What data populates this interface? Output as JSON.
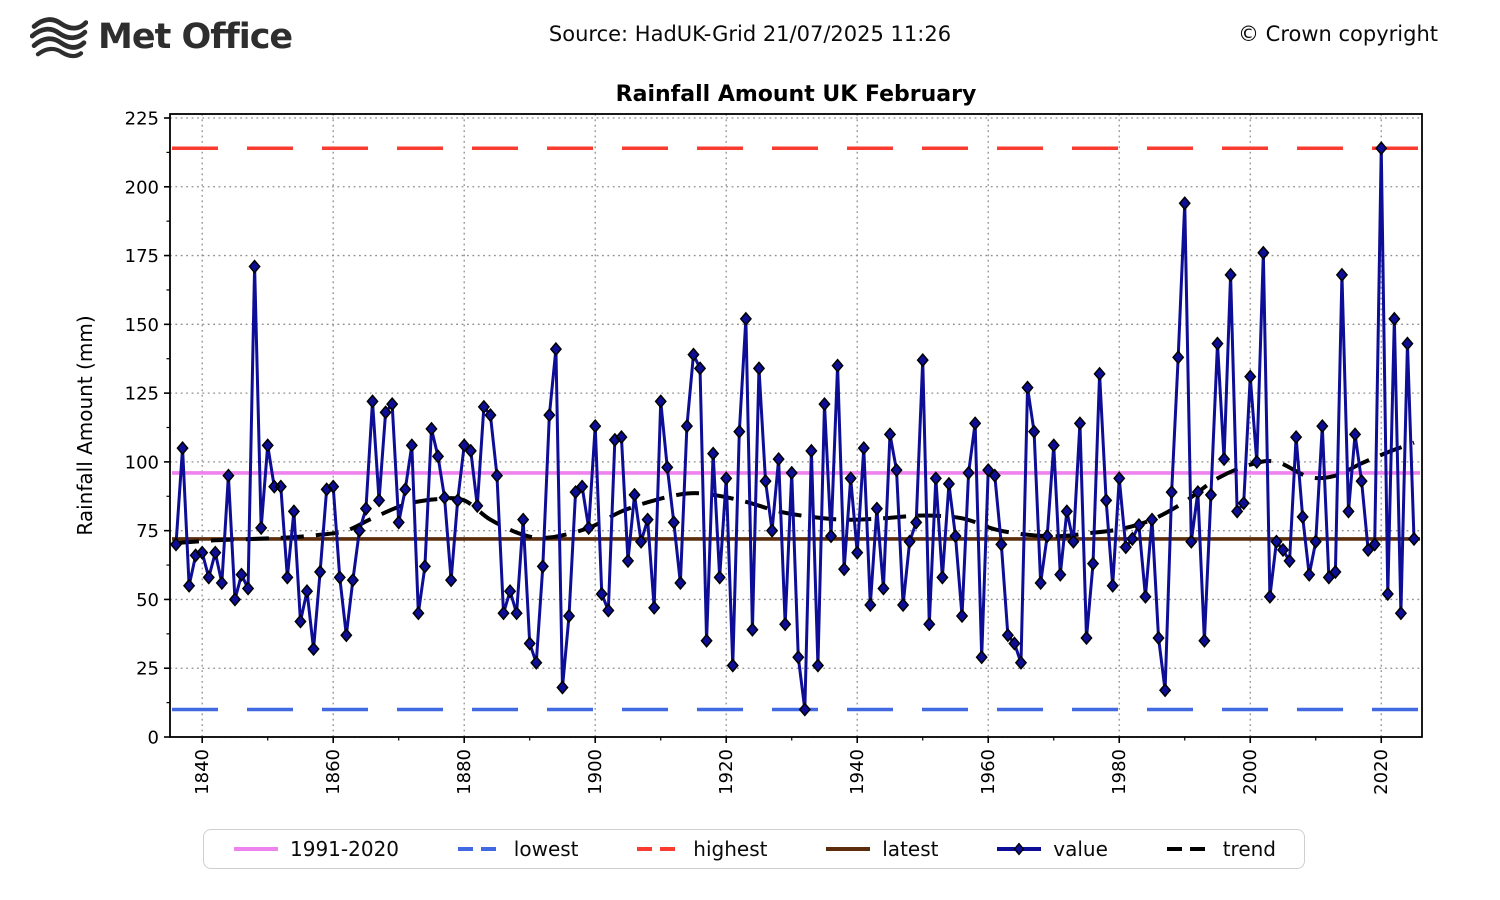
{
  "header": {
    "logo_text": "Met Office",
    "source": "Source: HadUK-Grid 21/07/2025 11:26",
    "copyright": "© Crown copyright"
  },
  "chart_data": {
    "type": "line",
    "title": "Rainfall Amount UK February",
    "xlabel": "",
    "ylabel": "Rainfall Amount (mm)",
    "ylim": [
      0,
      225
    ],
    "ytick_step": 25,
    "xticks": [
      1840,
      1860,
      1880,
      1900,
      1920,
      1940,
      1960,
      1980,
      2000,
      2020
    ],
    "grid": true,
    "legend_position": "bottom",
    "x_start": 1836,
    "x_end": 2025,
    "series_name": "value",
    "values": [
      70,
      105,
      55,
      66,
      67,
      58,
      67,
      56,
      95,
      50,
      59,
      54,
      171,
      76,
      106,
      91,
      91,
      58,
      82,
      42,
      53,
      32,
      60,
      90,
      91,
      58,
      37,
      57,
      75,
      83,
      122,
      86,
      118,
      121,
      78,
      90,
      106,
      45,
      62,
      112,
      102,
      87,
      57,
      86,
      106,
      104,
      84,
      120,
      117,
      95,
      45,
      53,
      45,
      79,
      34,
      27,
      62,
      117,
      141,
      18,
      44,
      89,
      91,
      76,
      113,
      52,
      46,
      108,
      109,
      64,
      88,
      71,
      79,
      47,
      122,
      98,
      78,
      56,
      113,
      139,
      134,
      35,
      103,
      58,
      94,
      26,
      111,
      152,
      39,
      134,
      93,
      75,
      101,
      41,
      96,
      29,
      10,
      104,
      26,
      121,
      73,
      135,
      61,
      94,
      67,
      105,
      48,
      83,
      54,
      110,
      97,
      48,
      71,
      78,
      137,
      41,
      94,
      58,
      92,
      73,
      44,
      96,
      114,
      29,
      97,
      95,
      70,
      37,
      34,
      27,
      127,
      111,
      56,
      73,
      106,
      59,
      82,
      71,
      114,
      36,
      63,
      132,
      86,
      55,
      94,
      69,
      72,
      77,
      51,
      79,
      36,
      17,
      89,
      138,
      194,
      71,
      89,
      35,
      88,
      143,
      101,
      168,
      82,
      85,
      131,
      100,
      176,
      51,
      71,
      68,
      64,
      109,
      80,
      59,
      71,
      113,
      58,
      60,
      168,
      82,
      110,
      93,
      68,
      70,
      214,
      52,
      152,
      45,
      143,
      72
    ],
    "reference_lines": [
      {
        "label": "1991-2020",
        "value": 96,
        "color": "#ee82ee",
        "style": "solid"
      },
      {
        "label": "lowest",
        "value": 10,
        "color": "#4169e1",
        "style": "dashed"
      },
      {
        "label": "highest",
        "value": 214,
        "color": "#f93b30",
        "style": "dashed"
      },
      {
        "label": "latest",
        "value": 72,
        "color": "#5b2d0d",
        "style": "solid"
      }
    ],
    "value_series": {
      "color": "#0d0d96",
      "marker": "diamond",
      "marker_edge_color": "#000000"
    },
    "trend": {
      "color": "#000000",
      "style": "dashed"
    },
    "trend_knots": [
      [
        1836,
        70.5
      ],
      [
        1842,
        71.5
      ],
      [
        1848,
        72
      ],
      [
        1853,
        72.5
      ],
      [
        1858,
        73.5
      ],
      [
        1862,
        75
      ],
      [
        1866,
        79.5
      ],
      [
        1871,
        84.5
      ],
      [
        1876,
        86.5
      ],
      [
        1880,
        86
      ],
      [
        1884,
        79
      ],
      [
        1889,
        73.5
      ],
      [
        1893,
        72.5
      ],
      [
        1899,
        76
      ],
      [
        1904,
        82
      ],
      [
        1909,
        86
      ],
      [
        1914,
        88.5
      ],
      [
        1918,
        88
      ],
      [
        1923,
        85.5
      ],
      [
        1928,
        82
      ],
      [
        1933,
        80
      ],
      [
        1938,
        79
      ],
      [
        1944,
        79.5
      ],
      [
        1950,
        80.5
      ],
      [
        1956,
        79.5
      ],
      [
        1961,
        75.5
      ],
      [
        1966,
        73.5
      ],
      [
        1971,
        73
      ],
      [
        1975,
        74
      ],
      [
        1980,
        75.5
      ],
      [
        1985,
        79
      ],
      [
        1990,
        85.5
      ],
      [
        1995,
        94
      ],
      [
        2000,
        99
      ],
      [
        2004,
        100
      ],
      [
        2009,
        94.5
      ],
      [
        2013,
        95
      ],
      [
        2017,
        99.5
      ],
      [
        2021,
        103.5
      ],
      [
        2025,
        107
      ]
    ],
    "legend": [
      {
        "label": "1991-2020",
        "color": "#ee82ee",
        "style": "solid",
        "marker": false
      },
      {
        "label": "lowest",
        "color": "#4169e1",
        "style": "dashed",
        "marker": false
      },
      {
        "label": "highest",
        "color": "#f93b30",
        "style": "dashed",
        "marker": false
      },
      {
        "label": "latest",
        "color": "#5b2d0d",
        "style": "solid",
        "marker": false
      },
      {
        "label": "value",
        "color": "#0d0d96",
        "style": "solid",
        "marker": true
      },
      {
        "label": "trend",
        "color": "#000000",
        "style": "dashed",
        "marker": false
      }
    ]
  }
}
